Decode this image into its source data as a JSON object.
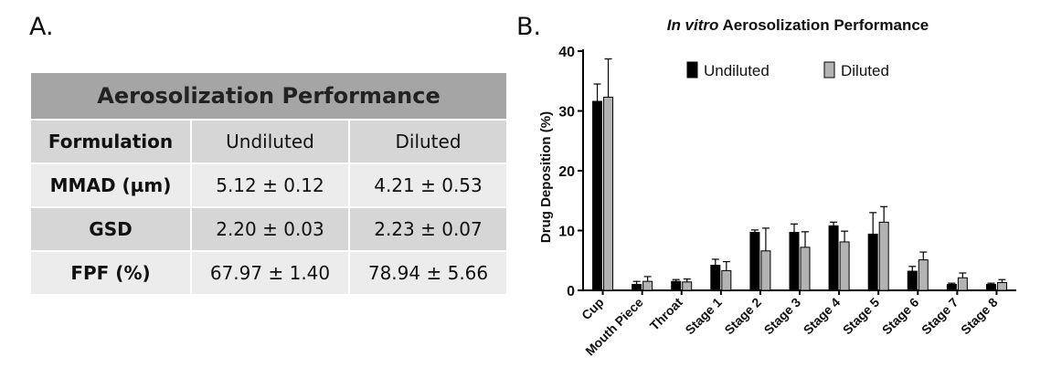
{
  "panelA": {
    "label": "A.",
    "table": {
      "title": "Aerosolization Performance",
      "headers": [
        "Formulation",
        "Undiluted",
        "Diluted"
      ],
      "rows": [
        [
          "MMAD (µm)",
          "5.12 ± 0.12",
          "4.21 ± 0.53"
        ],
        [
          "GSD",
          "2.20 ± 0.03",
          "2.23 ± 0.07"
        ],
        [
          "FPF (%)",
          "67.97 ± 1.40",
          "78.94 ± 5.66"
        ]
      ]
    }
  },
  "panelB": {
    "label": "B."
  },
  "chart_data": {
    "type": "bar",
    "title_italic": "In vitro",
    "title_rest": " Aerosolization Performance",
    "ylabel": "Drug Deposition (%)",
    "xlabel": "",
    "ylim": [
      0,
      40
    ],
    "yticks": [
      0,
      10,
      20,
      30,
      40
    ],
    "legend_position": "top",
    "categories": [
      "Cup",
      "Mouth Piece",
      "Throat",
      "Stage 1",
      "Stage 2",
      "Stage 3",
      "Stage 4",
      "Stage 5",
      "Stage 6",
      "Stage 7",
      "Stage 8"
    ],
    "series": [
      {
        "name": "Undiluted",
        "color": "#000000",
        "values": [
          31.6,
          1.0,
          1.5,
          4.2,
          9.7,
          9.7,
          10.8,
          9.4,
          3.2,
          1.0,
          1.0
        ],
        "errors": [
          2.9,
          0.5,
          0.3,
          1.0,
          0.4,
          1.4,
          0.6,
          3.6,
          0.8,
          0.2,
          0.2
        ]
      },
      {
        "name": "Diluted",
        "color": "#b3b3b3",
        "values": [
          32.3,
          1.5,
          1.4,
          3.3,
          6.6,
          7.2,
          8.1,
          11.4,
          5.1,
          2.1,
          1.3
        ],
        "errors": [
          6.4,
          0.8,
          0.5,
          1.5,
          3.8,
          2.6,
          1.8,
          2.6,
          1.3,
          0.8,
          0.5
        ]
      }
    ]
  }
}
